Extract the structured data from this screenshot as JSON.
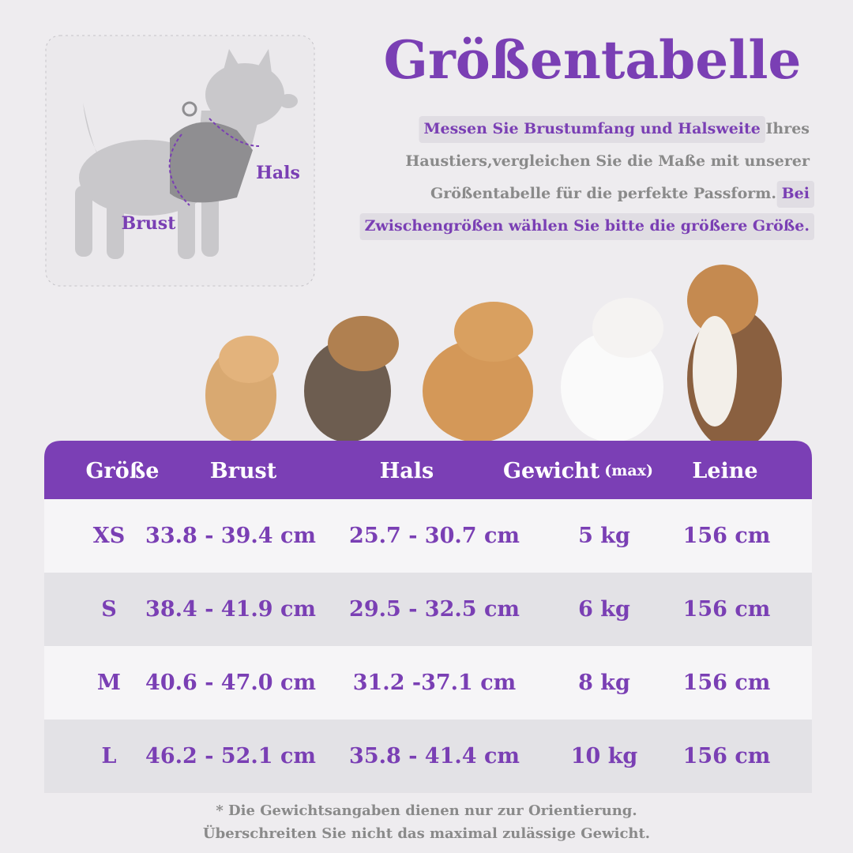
{
  "header": {
    "title": "Größentabelle",
    "description": [
      [
        {
          "text": "Messen Sie Brustumfang und Halsweite",
          "highlight": true
        },
        {
          "text": " Ihres",
          "highlight": false
        }
      ],
      [
        {
          "text": "Haustiers,vergleichen Sie die Maße mit unserer",
          "highlight": false
        }
      ],
      [
        {
          "text": "Größentabelle für die perfekte Passform. ",
          "highlight": false
        },
        {
          "text": "Bei",
          "highlight": true
        }
      ],
      [
        {
          "text": "Zwischengrößen wählen Sie bitte die größere Größe.",
          "highlight": true
        }
      ]
    ]
  },
  "diagram": {
    "neck_label": "Hals",
    "chest_label": "Brust"
  },
  "table": {
    "headers": [
      {
        "text": "Größe"
      },
      {
        "text": "Brust"
      },
      {
        "text": "Hals"
      },
      {
        "text": "Gewicht",
        "note": "(max)"
      },
      {
        "text": "Leine"
      }
    ],
    "rows": [
      [
        "XS",
        "33.8 - 39.4 cm",
        "25.7 - 30.7 cm",
        "5 kg",
        "156 cm"
      ],
      [
        "S",
        "38.4 - 41.9 cm",
        "29.5 - 32.5 cm",
        "6 kg",
        "156 cm"
      ],
      [
        "M",
        "40.6 - 47.0 cm",
        "31.2 -37.1 cm",
        "8 kg",
        "156 cm"
      ],
      [
        "L",
        "46.2 - 52.1 cm",
        "35.8 - 41.4 cm",
        "10 kg",
        "156 cm"
      ]
    ]
  },
  "footnote": [
    "* Die Gewichtsangaben dienen nur zur Orientierung.",
    "Überschreiten Sie nicht das maximal zulässige Gewicht."
  ]
}
